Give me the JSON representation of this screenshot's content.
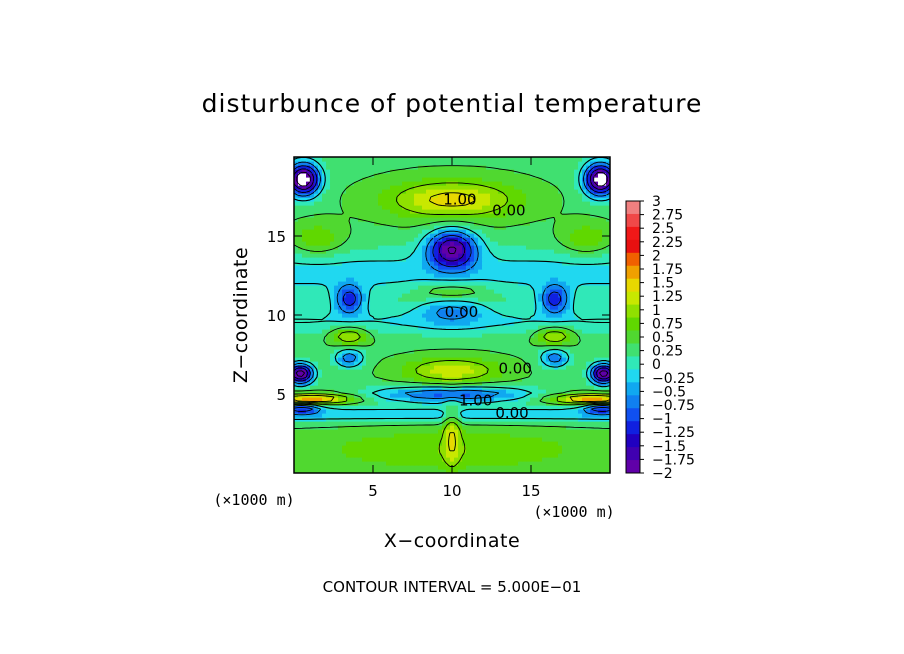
{
  "chart_data": {
    "type": "heatmap",
    "title": "disturbunce of potential temperature",
    "xlabel": "X−coordinate",
    "ylabel": "Z−coordinate",
    "x_unit": "(×1000 m)",
    "z_unit": "(×1000 m)",
    "xlim": [
      0,
      20
    ],
    "ylim": [
      0,
      20
    ],
    "x_ticks": [
      5,
      10,
      15
    ],
    "y_ticks": [
      5,
      10,
      15
    ],
    "x_tick_labels": [
      "5",
      "10",
      "15"
    ],
    "y_tick_labels": [
      "5",
      "10",
      "15"
    ],
    "colorbar": {
      "min": -2,
      "max": 3,
      "tick_values": [
        3,
        2.75,
        2.5,
        2.25,
        2,
        1.75,
        1.5,
        1.25,
        1,
        0.75,
        0.5,
        0.25,
        0,
        -0.25,
        -0.5,
        -0.75,
        -1,
        -1.25,
        -1.5,
        -1.75,
        -2
      ],
      "tick_labels": [
        "3",
        "2.75",
        "2.5",
        "2.25",
        "2",
        "1.75",
        "1.5",
        "1.25",
        "1",
        "0.75",
        "0.5",
        "0.25",
        "0",
        "−0.25",
        "−0.5",
        "−0.75",
        "−1",
        "−1.25",
        "−1.5",
        "−1.75",
        "−2"
      ],
      "colors": [
        "#f08080",
        "#f04848",
        "#f01818",
        "#e81010",
        "#f06000",
        "#f0a000",
        "#e8d800",
        "#c8e800",
        "#90e000",
        "#60d800",
        "#50d830",
        "#40e070",
        "#30e8b8",
        "#20d8f0",
        "#10a8f0",
        "#1080f0",
        "#1050f0",
        "#1020e0",
        "#2000c0",
        "#4000b0",
        "#6000a8"
      ]
    },
    "contour_interval": 0.5,
    "contour_labels": [
      {
        "text": "1.00",
        "x": 10.5,
        "z": 17.3
      },
      {
        "text": "0.00",
        "x": 13.6,
        "z": 16.6
      },
      {
        "text": "0.00",
        "x": 10.6,
        "z": 10.2
      },
      {
        "text": "0.00",
        "x": 14.0,
        "z": 6.6
      },
      {
        "text": "1.00",
        "x": 11.5,
        "z": 4.6
      },
      {
        "text": "0.00",
        "x": 13.8,
        "z": 3.8
      }
    ],
    "features": [
      {
        "kind": "min",
        "x": 10,
        "z": 14.2,
        "amp": -2.3,
        "sx": 1.5,
        "sz": 1.2
      },
      {
        "kind": "min",
        "x": 10,
        "z": 10.5,
        "amp": -0.9,
        "sx": 2.0,
        "sz": 1.0
      },
      {
        "kind": "max",
        "x": 10,
        "z": 17.3,
        "amp": 1.2,
        "sx": 4.0,
        "sz": 1.2
      },
      {
        "kind": "max",
        "x": 10,
        "z": 11.4,
        "amp": 0.9,
        "sx": 2.2,
        "sz": 0.7
      },
      {
        "kind": "max",
        "x": 10,
        "z": 6.5,
        "amp": 1.0,
        "sx": 3.0,
        "sz": 0.8
      },
      {
        "kind": "min",
        "x": 10,
        "z": 5.0,
        "amp": -1.4,
        "sx": 5.0,
        "sz": 0.5
      },
      {
        "kind": "min",
        "x": 0.6,
        "z": 18.6,
        "amp": -3.0,
        "sx": 1.0,
        "sz": 1.0
      },
      {
        "kind": "min",
        "x": 19.4,
        "z": 18.6,
        "amp": -3.0,
        "sx": 1.0,
        "sz": 1.0
      },
      {
        "kind": "min",
        "x": 3.5,
        "z": 11.0,
        "amp": -1.5,
        "sx": 0.9,
        "sz": 0.9
      },
      {
        "kind": "min",
        "x": 16.5,
        "z": 11.0,
        "amp": -1.5,
        "sx": 0.9,
        "sz": 0.9
      },
      {
        "kind": "min",
        "x": 3.5,
        "z": 7.3,
        "amp": -1.2,
        "sx": 0.9,
        "sz": 0.6
      },
      {
        "kind": "min",
        "x": 16.5,
        "z": 7.3,
        "amp": -1.2,
        "sx": 0.9,
        "sz": 0.6
      },
      {
        "kind": "max",
        "x": 3.5,
        "z": 8.7,
        "amp": 1.0,
        "sx": 1.2,
        "sz": 0.6
      },
      {
        "kind": "max",
        "x": 16.5,
        "z": 8.7,
        "amp": 1.0,
        "sx": 1.2,
        "sz": 0.6
      },
      {
        "kind": "max",
        "x": 1.5,
        "z": 14.8,
        "amp": 0.6,
        "sx": 1.6,
        "sz": 1.0
      },
      {
        "kind": "max",
        "x": 18.5,
        "z": 14.8,
        "amp": 0.6,
        "sx": 1.6,
        "sz": 1.0
      },
      {
        "kind": "min",
        "x": 0.4,
        "z": 6.3,
        "amp": -2.8,
        "sx": 0.8,
        "sz": 0.6
      },
      {
        "kind": "min",
        "x": 19.6,
        "z": 6.3,
        "amp": -2.8,
        "sx": 0.8,
        "sz": 0.6
      },
      {
        "kind": "max",
        "x": 1.2,
        "z": 4.7,
        "amp": 1.8,
        "sx": 2.5,
        "sz": 0.3
      },
      {
        "kind": "max",
        "x": 18.8,
        "z": 4.7,
        "amp": 1.8,
        "sx": 2.5,
        "sz": 0.3
      },
      {
        "kind": "min",
        "x": 0.5,
        "z": 4.1,
        "amp": -1.5,
        "sx": 1.2,
        "sz": 0.3
      },
      {
        "kind": "min",
        "x": 19.5,
        "z": 4.1,
        "amp": -1.5,
        "sx": 1.2,
        "sz": 0.3
      },
      {
        "kind": "max",
        "x": 10,
        "z": 1.5,
        "amp": 0.5,
        "sx": 10.0,
        "sz": 1.5
      },
      {
        "kind": "max",
        "x": 10,
        "z": 2.5,
        "amp": 0.8,
        "sx": 0.5,
        "sz": 2.0
      }
    ]
  },
  "footer": {
    "contour_note": "CONTOUR INTERVAL = 5.000E−01"
  }
}
